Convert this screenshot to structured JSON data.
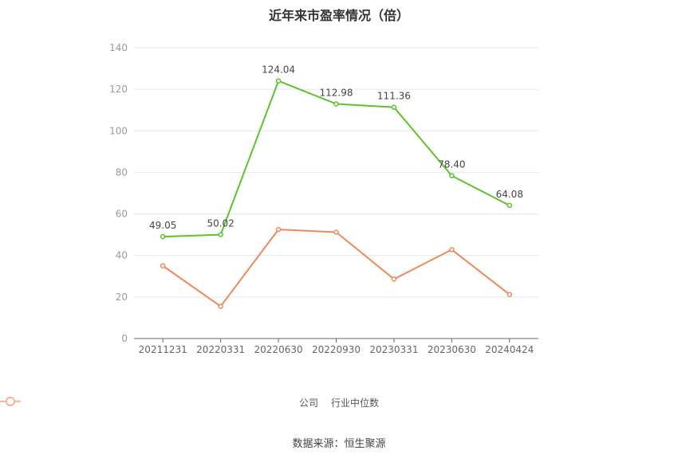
{
  "chart_data": {
    "type": "line",
    "title": "近年来市盈率情况（倍）",
    "categories": [
      "20211231",
      "20220331",
      "20220630",
      "20220930",
      "20230331",
      "20230630",
      "20240424"
    ],
    "series": [
      {
        "name": "公司",
        "values": [
          49.05,
          50.02,
          124.04,
          112.98,
          111.36,
          78.4,
          64.08
        ],
        "labels": [
          "49.05",
          "50.02",
          "124.04",
          "112.98",
          "111.36",
          "78.40",
          "64.08"
        ],
        "color": "#5cc22e"
      },
      {
        "name": "行业中位数",
        "values": [
          35.0,
          15.5,
          52.5,
          51.2,
          28.6,
          42.8,
          21.2
        ],
        "color": "#f0895a"
      }
    ],
    "ylim": [
      0,
      140
    ],
    "yticks": [
      "0",
      "20",
      "40",
      "60",
      "80",
      "100",
      "120",
      "140"
    ],
    "grid": true,
    "legend": "bottom-center"
  },
  "footer": {
    "source": "数据来源：恒生聚源"
  }
}
